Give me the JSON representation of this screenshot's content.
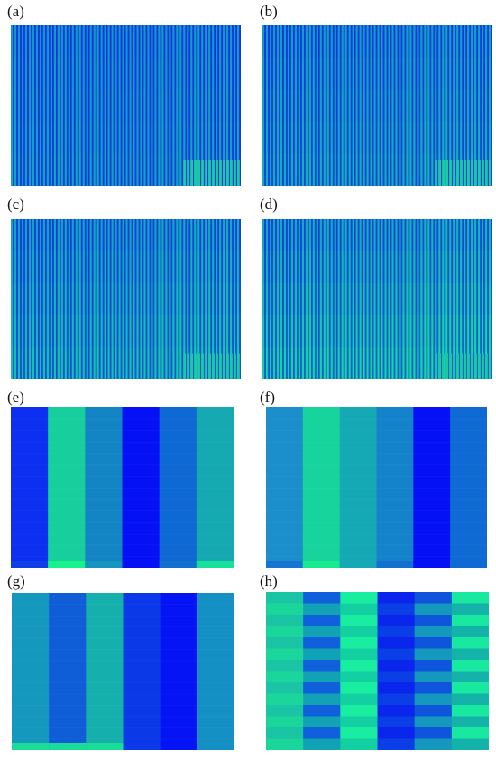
{
  "figure": {
    "panels": [
      {
        "label": "(a)",
        "style": "fine",
        "stripes": 64,
        "fill": 0.15,
        "bands": 5,
        "corner": 1
      },
      {
        "label": "(b)",
        "style": "fine",
        "stripes": 64,
        "fill": 0.25,
        "bands": 5,
        "corner": 1
      },
      {
        "label": "(c)",
        "style": "fine",
        "stripes": 64,
        "fill": 0.4,
        "bands": 5,
        "corner": 1
      },
      {
        "label": "(d)",
        "style": "fine",
        "stripes": 64,
        "fill": 0.55,
        "bands": 5,
        "corner": 1
      },
      {
        "label": "(e)",
        "style": "columns",
        "columns": [
          "#0c2ff2",
          "#16cf9c",
          "#1485c4",
          "#0511f5",
          "#0f69d4",
          "#15a9b2"
        ],
        "bottom": [
          "#0d3ee8",
          "#17f28b",
          "#1595c0",
          "#0511f5",
          "#1070cf",
          "#16e09a"
        ]
      },
      {
        "label": "(f)",
        "style": "columns",
        "columns": [
          "#1a8fcc",
          "#17d49c",
          "#14a9b4",
          "#1483cc",
          "#0511f5",
          "#0f6ad4"
        ],
        "bottom": [
          "#1675d0",
          "#18ea90",
          "#14a9b4",
          "#1470cf",
          "#0511f5",
          "#0f6ad4"
        ]
      },
      {
        "label": "(g)",
        "style": "columns",
        "columns": [
          "#1598bd",
          "#0f5ed8",
          "#16b0ac",
          "#0b38e8",
          "#0514f4",
          "#1590c4"
        ],
        "bottom": [
          "#18dc98",
          "#18dc98",
          "#18dc98",
          "#0b38e8",
          "#0514f4",
          "#1590c4"
        ]
      },
      {
        "label": "(h)",
        "style": "rows",
        "columns": [
          [
            "#19c5a4",
            "#1ad69a"
          ],
          [
            "#0f60da",
            "#12a2b6"
          ],
          [
            "#19eea0",
            "#13d0a2"
          ],
          [
            "#0a25ec",
            "#0a3ee6"
          ],
          [
            "#0f55dc",
            "#1598bd"
          ],
          [
            "#18e8a0",
            "#14b3aa"
          ]
        ],
        "rows": 14
      }
    ]
  }
}
